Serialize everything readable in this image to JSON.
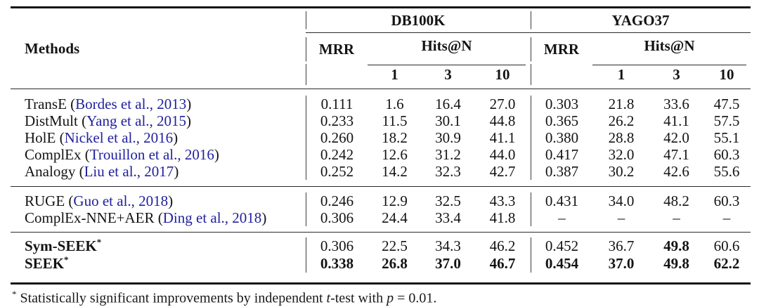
{
  "page": {
    "background": "#ffffff",
    "text_color": "#131313",
    "citation_color": "#21219e"
  },
  "header": {
    "methods": "Methods",
    "datasets": [
      "DB100K",
      "YAGO37"
    ],
    "mrr": "MRR",
    "hits": "Hits@N",
    "hits_cols": [
      "1",
      "3",
      "10"
    ]
  },
  "blocks": [
    {
      "rows": [
        {
          "pre": "TransE (",
          "cite": "Bordes et al., 2013",
          "post": ")",
          "vals": [
            "0.111",
            "1.6",
            "16.4",
            "27.0",
            "0.303",
            "21.8",
            "33.6",
            "47.5"
          ]
        },
        {
          "pre": "DistMult (",
          "cite": "Yang et al., 2015",
          "post": ")",
          "vals": [
            "0.233",
            "11.5",
            "30.1",
            "44.8",
            "0.365",
            "26.2",
            "41.1",
            "57.5"
          ]
        },
        {
          "pre": "HolE (",
          "cite": "Nickel et al., 2016",
          "post": ")",
          "vals": [
            "0.260",
            "18.2",
            "30.9",
            "41.1",
            "0.380",
            "28.8",
            "42.0",
            "55.1"
          ]
        },
        {
          "pre": "ComplEx (",
          "cite": "Trouillon et al., 2016",
          "post": ")",
          "vals": [
            "0.242",
            "12.6",
            "31.2",
            "44.0",
            "0.417",
            "32.0",
            "47.1",
            "60.3"
          ]
        },
        {
          "pre": "Analogy (",
          "cite": "Liu et al., 2017",
          "post": ")",
          "vals": [
            "0.252",
            "14.2",
            "32.3",
            "42.7",
            "0.387",
            "30.2",
            "42.6",
            "55.6"
          ]
        }
      ]
    },
    {
      "rows": [
        {
          "pre": "RUGE (",
          "cite": "Guo et al., 2018",
          "post": ")",
          "vals": [
            "0.246",
            "12.9",
            "32.5",
            "43.3",
            "0.431",
            "34.0",
            "48.2",
            "60.3"
          ]
        },
        {
          "pre": "ComplEx-NNE+AER (",
          "cite": "Ding et al., 2018",
          "post": ")",
          "vals": [
            "0.306",
            "24.4",
            "33.4",
            "41.8",
            "–",
            "–",
            "–",
            "–"
          ]
        }
      ]
    },
    {
      "rows": [
        {
          "name": "Sym-SEEK",
          "sup": "*",
          "vals": [
            "0.306",
            "22.5",
            "34.3",
            "46.2",
            "0.452",
            "36.7",
            "49.8",
            "60.6"
          ]
        },
        {
          "name": "SEEK",
          "sup": "*",
          "vals": [
            "0.338",
            "26.8",
            "37.0",
            "46.7",
            "0.454",
            "37.0",
            "49.8",
            "62.2"
          ]
        }
      ]
    }
  ],
  "footnote": {
    "star": "*",
    "pre": "Statistically significant improvements by independent ",
    "t_var": "t",
    "mid": "-test with ",
    "p_var": "p",
    "post": " = 0.01."
  }
}
